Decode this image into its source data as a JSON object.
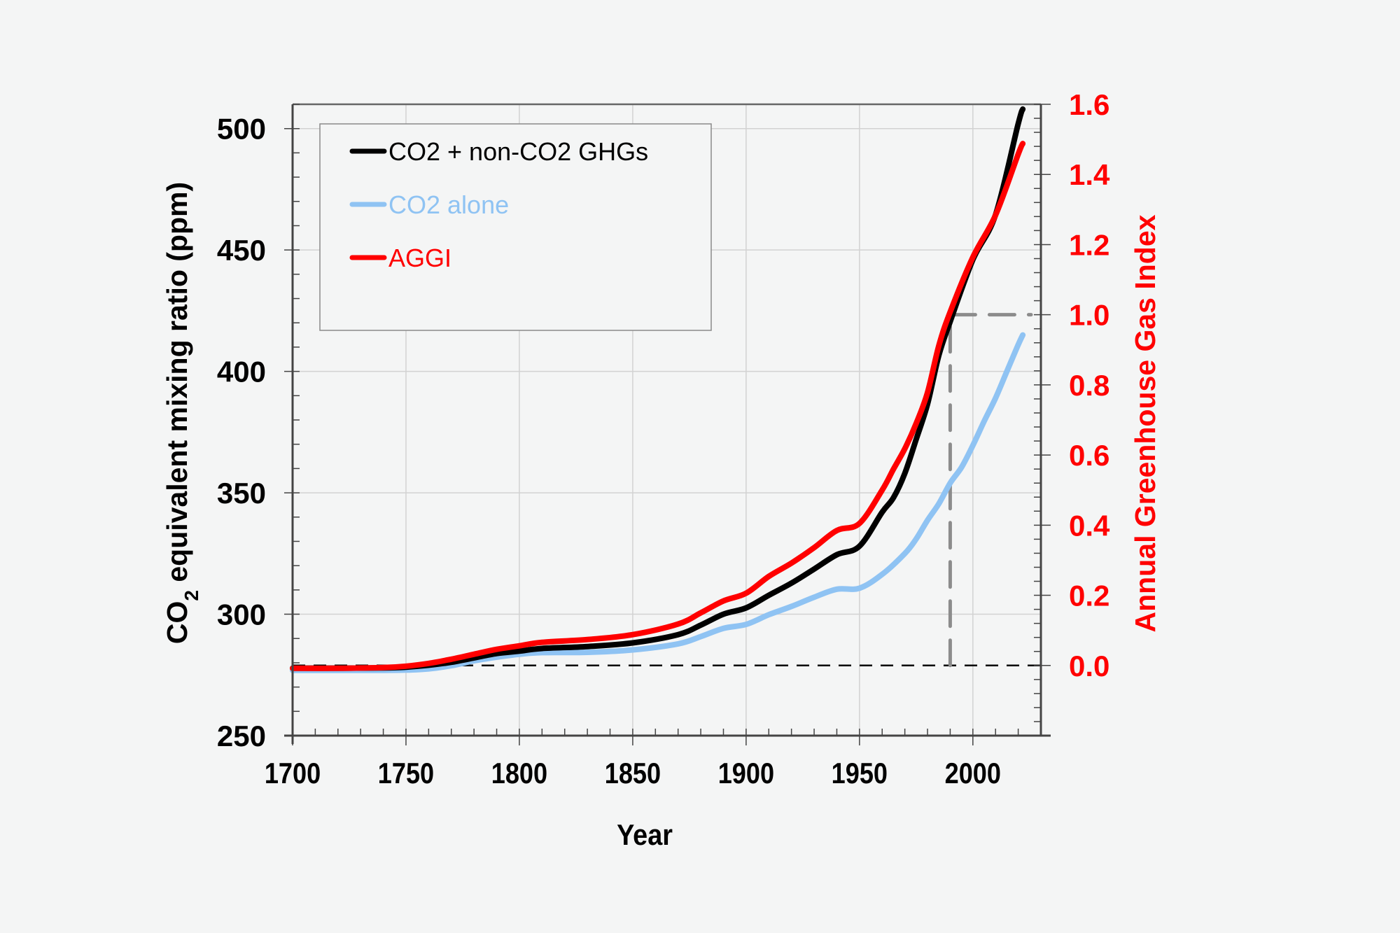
{
  "chart_data": {
    "type": "line",
    "title": "",
    "xlabel": "Year",
    "ylabel_left": {
      "main": "CO",
      "sub": "2",
      "rest": " equivalent mixing ratio (ppm)"
    },
    "ylabel_right": "Annual Greenhouse Gas Index",
    "xlim": [
      1700,
      2030
    ],
    "ylim_left": [
      250,
      510
    ],
    "ylim_right": [
      -0.2,
      1.6
    ],
    "x_ticks": [
      1700,
      1750,
      1800,
      1850,
      1900,
      1950,
      2000
    ],
    "x_tick_labels": [
      "1700",
      "1750",
      "1800",
      "1850",
      "1900",
      "1950",
      "2000"
    ],
    "x_minor_step": 10,
    "y_left_ticks": [
      250,
      300,
      350,
      400,
      450,
      500
    ],
    "y_left_tick_labels": [
      "250",
      "300",
      "350",
      "400",
      "450",
      "500"
    ],
    "y_left_minor_step": 10,
    "y_right_ticks": [
      0.0,
      0.2,
      0.4,
      0.6,
      0.8,
      1.0,
      1.2,
      1.4,
      1.6
    ],
    "y_right_tick_labels": [
      "0.0",
      "0.2",
      "0.4",
      "0.6",
      "0.8",
      "1.0",
      "1.2",
      "1.4",
      "1.6"
    ],
    "y_right_minor_step": 0.04,
    "grid": true,
    "legend_position": "top-left",
    "series": [
      {
        "name": "CO2 + non-CO2 GHGs",
        "axis": "left",
        "color": "#000000",
        "x": [
          1700,
          1720,
          1740,
          1750,
          1760,
          1770,
          1780,
          1790,
          1800,
          1810,
          1830,
          1850,
          1870,
          1880,
          1890,
          1900,
          1910,
          1920,
          1930,
          1940,
          1950,
          1960,
          1965,
          1970,
          1975,
          1980,
          1985,
          1990,
          2000,
          2010,
          2020,
          2022
        ],
        "y": [
          277.8,
          277.8,
          277.9,
          278.2,
          279.0,
          280.2,
          282.0,
          283.8,
          284.8,
          285.9,
          286.7,
          288.2,
          291.6,
          295.5,
          300.0,
          302.6,
          307.8,
          312.8,
          318.6,
          324.5,
          328.0,
          342.0,
          348.0,
          358.0,
          372.0,
          386.5,
          406.6,
          420.5,
          446.0,
          464.5,
          502.0,
          508.0
        ]
      },
      {
        "name": "CO2 alone",
        "axis": "left",
        "color": "#8fc3f3",
        "x": [
          1700,
          1720,
          1740,
          1750,
          1760,
          1770,
          1780,
          1790,
          1800,
          1810,
          1830,
          1850,
          1870,
          1880,
          1890,
          1900,
          1910,
          1920,
          1930,
          1940,
          1950,
          1960,
          1970,
          1975,
          1980,
          1985,
          1990,
          1995,
          2000,
          2005,
          2010,
          2015,
          2020,
          2022
        ],
        "y": [
          276.9,
          276.9,
          276.9,
          277.0,
          277.5,
          278.8,
          280.8,
          282.3,
          283.5,
          284.2,
          284.3,
          285.3,
          287.8,
          290.8,
          294.2,
          295.8,
          299.8,
          303.2,
          307.0,
          310.3,
          310.7,
          316.4,
          325.0,
          331.0,
          338.7,
          345.5,
          354.0,
          360.5,
          369.5,
          379.5,
          389.0,
          400.0,
          411.0,
          415.0
        ]
      },
      {
        "name": "AGGI",
        "axis": "right",
        "color": "#ff0000",
        "x": [
          1700,
          1720,
          1740,
          1750,
          1760,
          1770,
          1780,
          1790,
          1800,
          1810,
          1830,
          1850,
          1870,
          1880,
          1890,
          1900,
          1910,
          1920,
          1930,
          1940,
          1950,
          1960,
          1965,
          1970,
          1975,
          1980,
          1985,
          1990,
          2000,
          2010,
          2020,
          2022
        ],
        "y": [
          -0.008,
          -0.008,
          -0.006,
          -0.002,
          0.006,
          0.018,
          0.032,
          0.046,
          0.056,
          0.066,
          0.074,
          0.088,
          0.118,
          0.15,
          0.184,
          0.206,
          0.254,
          0.292,
          0.336,
          0.385,
          0.405,
          0.5,
          0.56,
          0.618,
          0.69,
          0.778,
          0.912,
          1.008,
          1.164,
          1.284,
          1.458,
          1.488
        ]
      }
    ],
    "reference_lines": [
      {
        "name": "AGGI zero baseline",
        "axis": "right",
        "y": 0.0,
        "style": "dashed",
        "color": "#000000"
      },
      {
        "name": "AGGI 1990 reference vertical",
        "x": 1990,
        "y_from": 0.0,
        "y_to": 1.0,
        "axis": "right",
        "style": "dashed",
        "color": "#8c8c8c"
      },
      {
        "name": "AGGI 1.0 horizontal",
        "axis": "right",
        "y": 1.0,
        "x_from": 1990,
        "x_to": 2030,
        "style": "dashed",
        "color": "#8c8c8c"
      }
    ],
    "colors": {
      "background": "#f4f5f5",
      "left_axis_text": "#000000",
      "right_axis_text": "#ff0000",
      "grid": "#d2d2d2",
      "axis": "#444444"
    }
  }
}
